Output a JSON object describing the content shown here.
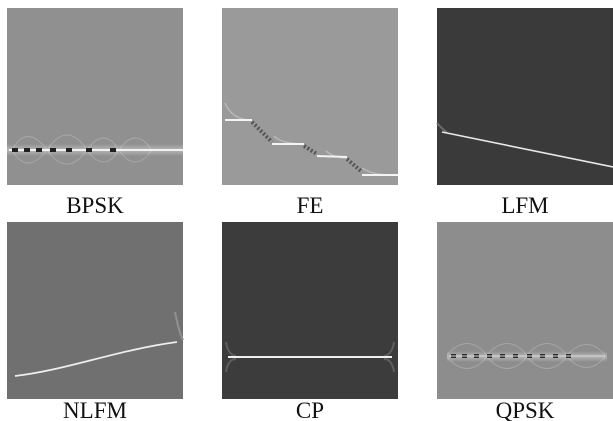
{
  "panels": [
    {
      "label": "BPSK"
    },
    {
      "label": "FE"
    },
    {
      "label": "LFM"
    },
    {
      "label": "NLFM"
    },
    {
      "label": "CP"
    },
    {
      "label": "QPSK"
    }
  ]
}
